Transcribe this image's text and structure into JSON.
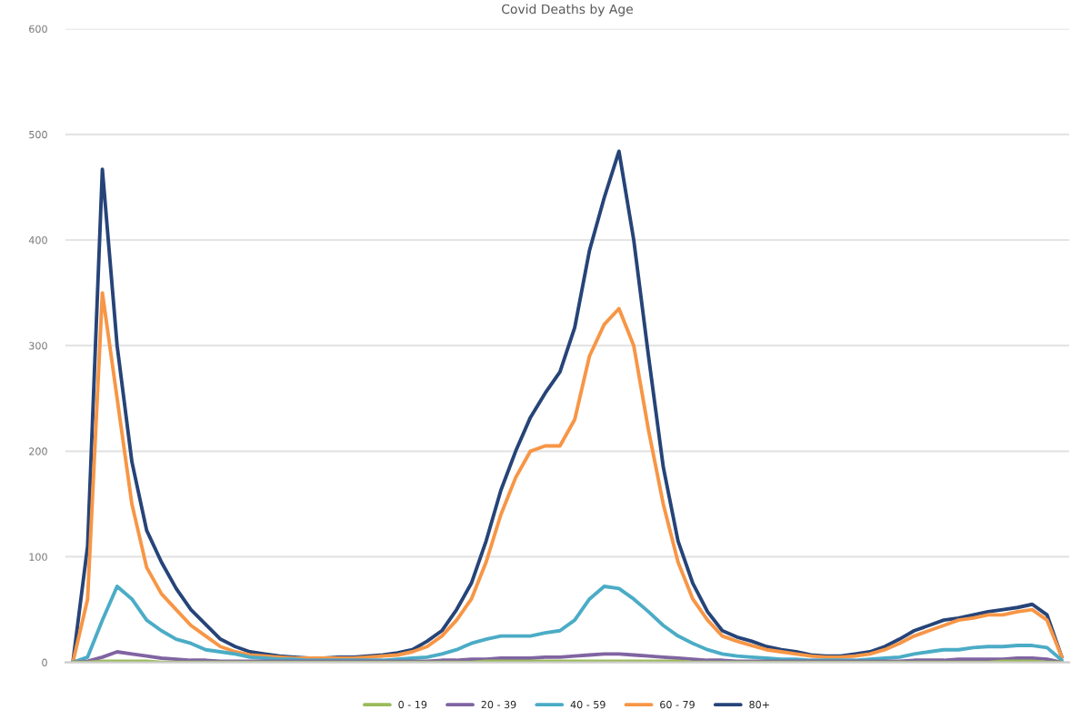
{
  "chart_data": {
    "type": "line",
    "title": "Covid Deaths by Age",
    "categories": [
      null,
      null,
      null,
      null,
      null,
      null,
      null,
      null,
      null,
      null,
      null,
      null,
      null,
      null,
      null,
      null,
      null,
      null,
      null,
      null,
      null,
      null,
      null,
      null,
      null,
      null,
      null,
      null,
      null,
      null,
      null,
      null,
      null,
      null,
      null,
      null,
      null,
      null,
      null,
      null,
      null,
      null,
      null,
      null,
      null,
      null,
      null,
      null,
      null,
      null,
      null,
      null,
      null,
      null,
      null,
      null,
      null,
      null,
      null,
      null,
      null,
      null,
      null,
      null,
      null,
      null,
      null,
      null
    ],
    "series": [
      {
        "name": "0 - 19",
        "color": "#9bbb59",
        "values": [
          0,
          0,
          1,
          1,
          1,
          1,
          0,
          0,
          0,
          0,
          0,
          0,
          0,
          0,
          0,
          0,
          0,
          0,
          0,
          0,
          0,
          0,
          0,
          0,
          0,
          0,
          0,
          0,
          1,
          1,
          1,
          1,
          1,
          1,
          1,
          1,
          1,
          1,
          1,
          1,
          1,
          1,
          0,
          0,
          0,
          0,
          0,
          0,
          0,
          0,
          0,
          0,
          0,
          0,
          0,
          0,
          0,
          0,
          0,
          0,
          0,
          0,
          0,
          1,
          1,
          1,
          0,
          0
        ]
      },
      {
        "name": "20 - 39",
        "color": "#8064a2",
        "values": [
          0,
          1,
          5,
          10,
          8,
          6,
          4,
          3,
          2,
          2,
          1,
          1,
          1,
          1,
          1,
          1,
          1,
          1,
          1,
          1,
          1,
          1,
          1,
          1,
          1,
          2,
          2,
          3,
          3,
          4,
          4,
          4,
          5,
          5,
          6,
          7,
          8,
          8,
          7,
          6,
          5,
          4,
          3,
          2,
          2,
          1,
          1,
          1,
          1,
          1,
          1,
          1,
          1,
          1,
          1,
          1,
          1,
          2,
          2,
          2,
          3,
          3,
          3,
          3,
          4,
          4,
          3,
          0
        ]
      },
      {
        "name": "40 - 59",
        "color": "#4bacc6",
        "values": [
          0,
          5,
          40,
          72,
          60,
          40,
          30,
          22,
          18,
          12,
          10,
          8,
          5,
          4,
          3,
          3,
          2,
          2,
          2,
          2,
          2,
          2,
          3,
          4,
          5,
          8,
          12,
          18,
          22,
          25,
          25,
          25,
          28,
          30,
          40,
          60,
          72,
          70,
          60,
          48,
          35,
          25,
          18,
          12,
          8,
          6,
          5,
          4,
          3,
          3,
          2,
          2,
          2,
          2,
          3,
          4,
          5,
          8,
          10,
          12,
          12,
          14,
          15,
          15,
          16,
          16,
          14,
          2
        ]
      },
      {
        "name": "60 - 79",
        "color": "#f79646",
        "values": [
          0,
          60,
          350,
          250,
          150,
          90,
          65,
          50,
          35,
          25,
          15,
          10,
          7,
          6,
          5,
          4,
          4,
          4,
          4,
          4,
          5,
          6,
          7,
          10,
          15,
          25,
          40,
          60,
          95,
          140,
          175,
          200,
          205,
          205,
          230,
          290,
          320,
          335,
          300,
          220,
          150,
          95,
          60,
          40,
          25,
          20,
          16,
          12,
          10,
          8,
          6,
          5,
          5,
          6,
          8,
          12,
          18,
          25,
          30,
          35,
          40,
          42,
          45,
          45,
          48,
          50,
          40,
          5
        ]
      },
      {
        "name": "80+",
        "color": "#264478",
        "values": [
          0,
          110,
          467,
          300,
          190,
          125,
          95,
          70,
          50,
          36,
          22,
          15,
          10,
          8,
          6,
          5,
          4,
          4,
          5,
          5,
          6,
          7,
          9,
          12,
          20,
          30,
          50,
          75,
          115,
          163,
          200,
          232,
          255,
          275,
          317,
          390,
          440,
          484,
          400,
          290,
          185,
          115,
          75,
          48,
          30,
          24,
          20,
          15,
          12,
          10,
          7,
          6,
          6,
          8,
          10,
          15,
          22,
          30,
          35,
          40,
          42,
          45,
          48,
          50,
          52,
          55,
          45,
          5
        ]
      }
    ],
    "ylim": [
      0,
      600
    ],
    "yticks": [
      0,
      100,
      200,
      300,
      400,
      500,
      600
    ],
    "grid": "y",
    "legend": "bottom",
    "line_style": "solid",
    "marker": "none"
  }
}
